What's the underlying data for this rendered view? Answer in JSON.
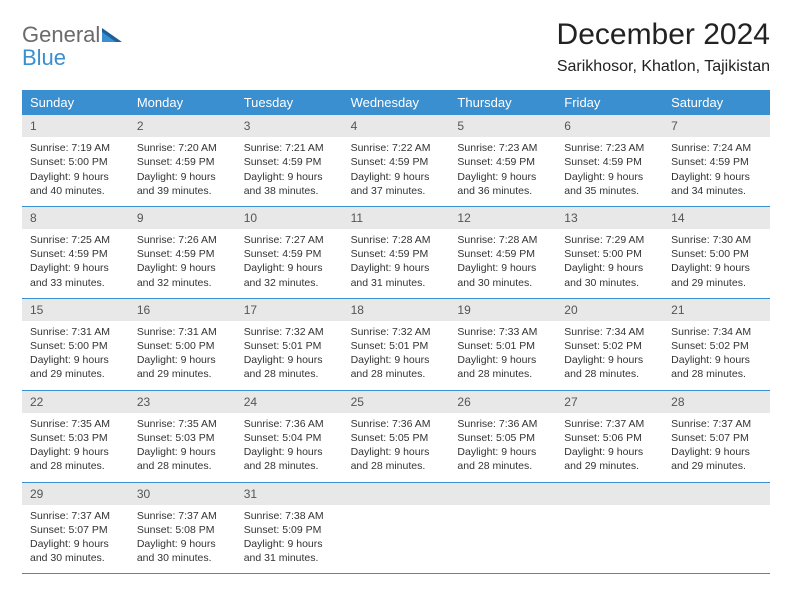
{
  "logo": {
    "general": "General",
    "blue": "Blue"
  },
  "title": "December 2024",
  "location": "Sarikhosor, Khatlon, Tajikistan",
  "colors": {
    "header_blue": "#3a8fd0",
    "daynum_bg": "#e8e8e8",
    "text": "#333333",
    "logo_gray": "#6b6b6b"
  },
  "weekdays": [
    "Sunday",
    "Monday",
    "Tuesday",
    "Wednesday",
    "Thursday",
    "Friday",
    "Saturday"
  ],
  "weeks": [
    [
      {
        "n": "1",
        "sr": "Sunrise: 7:19 AM",
        "ss": "Sunset: 5:00 PM",
        "dl": "Daylight: 9 hours and 40 minutes."
      },
      {
        "n": "2",
        "sr": "Sunrise: 7:20 AM",
        "ss": "Sunset: 4:59 PM",
        "dl": "Daylight: 9 hours and 39 minutes."
      },
      {
        "n": "3",
        "sr": "Sunrise: 7:21 AM",
        "ss": "Sunset: 4:59 PM",
        "dl": "Daylight: 9 hours and 38 minutes."
      },
      {
        "n": "4",
        "sr": "Sunrise: 7:22 AM",
        "ss": "Sunset: 4:59 PM",
        "dl": "Daylight: 9 hours and 37 minutes."
      },
      {
        "n": "5",
        "sr": "Sunrise: 7:23 AM",
        "ss": "Sunset: 4:59 PM",
        "dl": "Daylight: 9 hours and 36 minutes."
      },
      {
        "n": "6",
        "sr": "Sunrise: 7:23 AM",
        "ss": "Sunset: 4:59 PM",
        "dl": "Daylight: 9 hours and 35 minutes."
      },
      {
        "n": "7",
        "sr": "Sunrise: 7:24 AM",
        "ss": "Sunset: 4:59 PM",
        "dl": "Daylight: 9 hours and 34 minutes."
      }
    ],
    [
      {
        "n": "8",
        "sr": "Sunrise: 7:25 AM",
        "ss": "Sunset: 4:59 PM",
        "dl": "Daylight: 9 hours and 33 minutes."
      },
      {
        "n": "9",
        "sr": "Sunrise: 7:26 AM",
        "ss": "Sunset: 4:59 PM",
        "dl": "Daylight: 9 hours and 32 minutes."
      },
      {
        "n": "10",
        "sr": "Sunrise: 7:27 AM",
        "ss": "Sunset: 4:59 PM",
        "dl": "Daylight: 9 hours and 32 minutes."
      },
      {
        "n": "11",
        "sr": "Sunrise: 7:28 AM",
        "ss": "Sunset: 4:59 PM",
        "dl": "Daylight: 9 hours and 31 minutes."
      },
      {
        "n": "12",
        "sr": "Sunrise: 7:28 AM",
        "ss": "Sunset: 4:59 PM",
        "dl": "Daylight: 9 hours and 30 minutes."
      },
      {
        "n": "13",
        "sr": "Sunrise: 7:29 AM",
        "ss": "Sunset: 5:00 PM",
        "dl": "Daylight: 9 hours and 30 minutes."
      },
      {
        "n": "14",
        "sr": "Sunrise: 7:30 AM",
        "ss": "Sunset: 5:00 PM",
        "dl": "Daylight: 9 hours and 29 minutes."
      }
    ],
    [
      {
        "n": "15",
        "sr": "Sunrise: 7:31 AM",
        "ss": "Sunset: 5:00 PM",
        "dl": "Daylight: 9 hours and 29 minutes."
      },
      {
        "n": "16",
        "sr": "Sunrise: 7:31 AM",
        "ss": "Sunset: 5:00 PM",
        "dl": "Daylight: 9 hours and 29 minutes."
      },
      {
        "n": "17",
        "sr": "Sunrise: 7:32 AM",
        "ss": "Sunset: 5:01 PM",
        "dl": "Daylight: 9 hours and 28 minutes."
      },
      {
        "n": "18",
        "sr": "Sunrise: 7:32 AM",
        "ss": "Sunset: 5:01 PM",
        "dl": "Daylight: 9 hours and 28 minutes."
      },
      {
        "n": "19",
        "sr": "Sunrise: 7:33 AM",
        "ss": "Sunset: 5:01 PM",
        "dl": "Daylight: 9 hours and 28 minutes."
      },
      {
        "n": "20",
        "sr": "Sunrise: 7:34 AM",
        "ss": "Sunset: 5:02 PM",
        "dl": "Daylight: 9 hours and 28 minutes."
      },
      {
        "n": "21",
        "sr": "Sunrise: 7:34 AM",
        "ss": "Sunset: 5:02 PM",
        "dl": "Daylight: 9 hours and 28 minutes."
      }
    ],
    [
      {
        "n": "22",
        "sr": "Sunrise: 7:35 AM",
        "ss": "Sunset: 5:03 PM",
        "dl": "Daylight: 9 hours and 28 minutes."
      },
      {
        "n": "23",
        "sr": "Sunrise: 7:35 AM",
        "ss": "Sunset: 5:03 PM",
        "dl": "Daylight: 9 hours and 28 minutes."
      },
      {
        "n": "24",
        "sr": "Sunrise: 7:36 AM",
        "ss": "Sunset: 5:04 PM",
        "dl": "Daylight: 9 hours and 28 minutes."
      },
      {
        "n": "25",
        "sr": "Sunrise: 7:36 AM",
        "ss": "Sunset: 5:05 PM",
        "dl": "Daylight: 9 hours and 28 minutes."
      },
      {
        "n": "26",
        "sr": "Sunrise: 7:36 AM",
        "ss": "Sunset: 5:05 PM",
        "dl": "Daylight: 9 hours and 28 minutes."
      },
      {
        "n": "27",
        "sr": "Sunrise: 7:37 AM",
        "ss": "Sunset: 5:06 PM",
        "dl": "Daylight: 9 hours and 29 minutes."
      },
      {
        "n": "28",
        "sr": "Sunrise: 7:37 AM",
        "ss": "Sunset: 5:07 PM",
        "dl": "Daylight: 9 hours and 29 minutes."
      }
    ],
    [
      {
        "n": "29",
        "sr": "Sunrise: 7:37 AM",
        "ss": "Sunset: 5:07 PM",
        "dl": "Daylight: 9 hours and 30 minutes."
      },
      {
        "n": "30",
        "sr": "Sunrise: 7:37 AM",
        "ss": "Sunset: 5:08 PM",
        "dl": "Daylight: 9 hours and 30 minutes."
      },
      {
        "n": "31",
        "sr": "Sunrise: 7:38 AM",
        "ss": "Sunset: 5:09 PM",
        "dl": "Daylight: 9 hours and 31 minutes."
      },
      null,
      null,
      null,
      null
    ]
  ]
}
